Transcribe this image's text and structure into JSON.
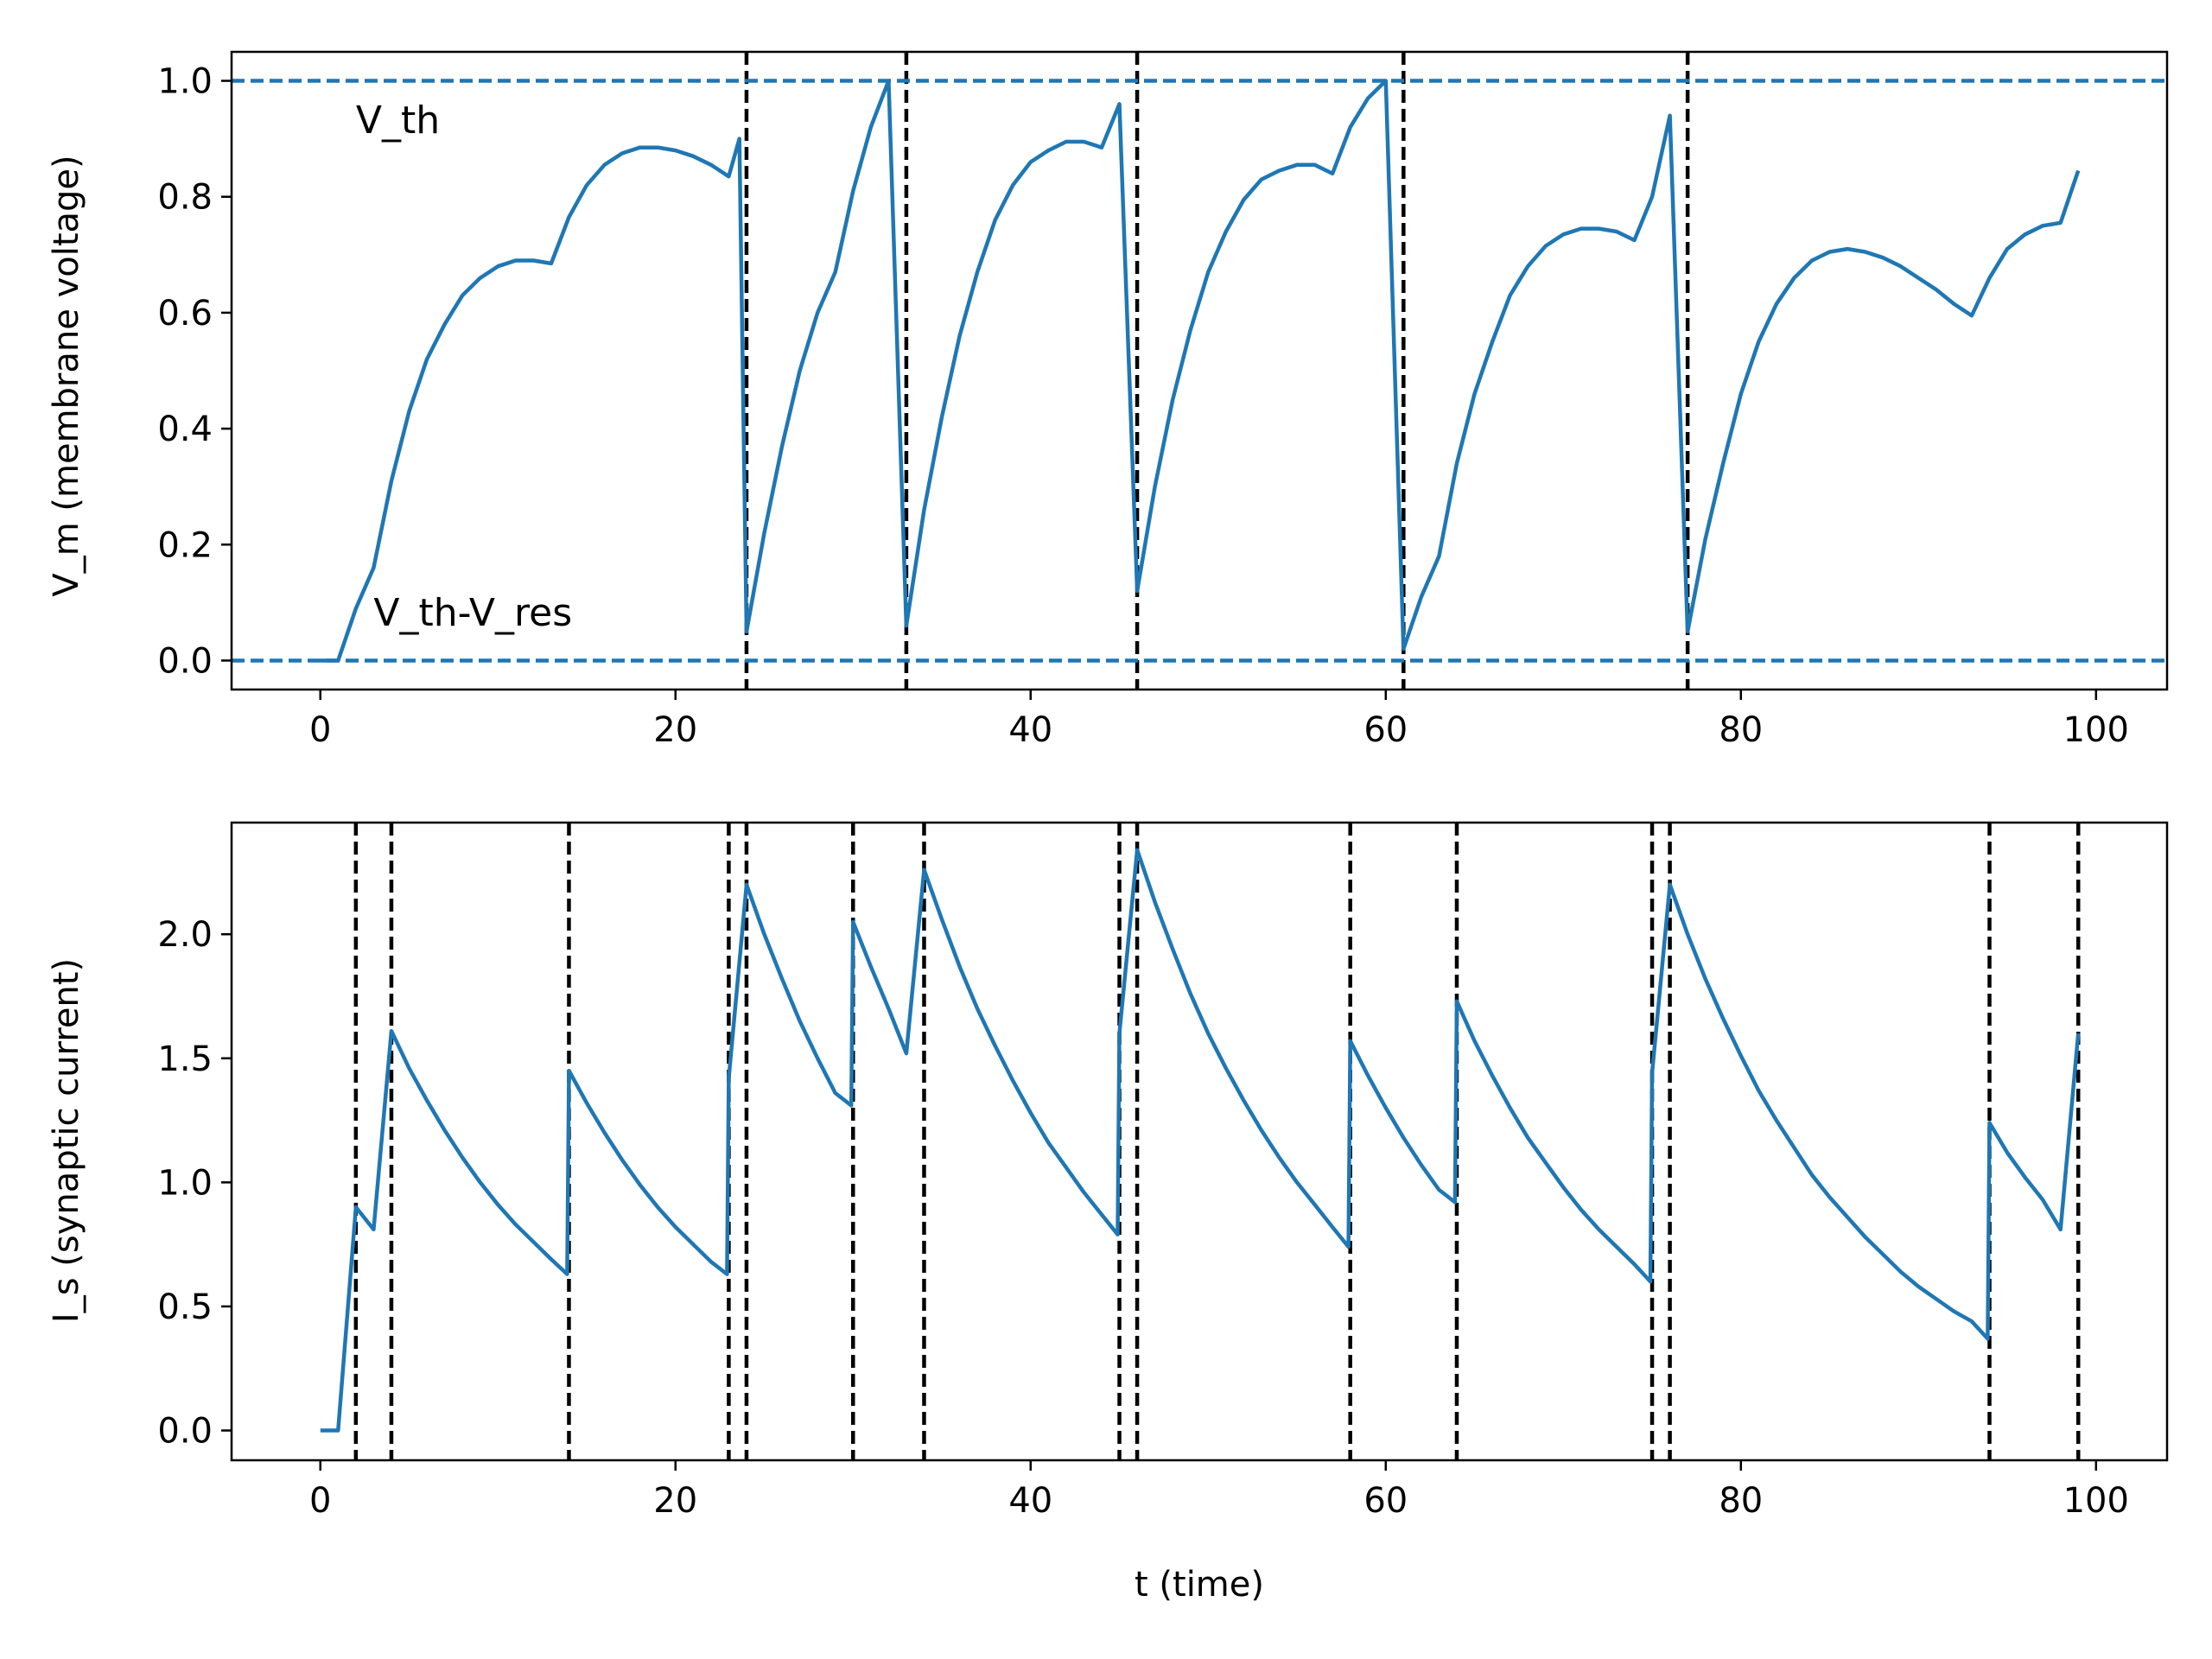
{
  "chart_data": [
    {
      "type": "line",
      "xlabel": "",
      "ylabel": "V_m (membrane voltage)",
      "xlim": [
        -5,
        104
      ],
      "ylim": [
        -0.05,
        1.05
      ],
      "xticks": [
        0,
        20,
        40,
        60,
        80,
        100
      ],
      "xtick_labels": [
        "0",
        "20",
        "40",
        "60",
        "80",
        "100"
      ],
      "yticks": [
        0.0,
        0.2,
        0.4,
        0.6,
        0.8,
        1.0
      ],
      "ytick_labels": [
        "0.0",
        "0.2",
        "0.4",
        "0.6",
        "0.8",
        "1.0"
      ],
      "grid": false,
      "series": [
        {
          "color": "#1f77b4",
          "points": [
            [
              0,
              0
            ],
            [
              1,
              0
            ],
            [
              2,
              0.09
            ],
            [
              3,
              0.16
            ],
            [
              4,
              0.31
            ],
            [
              5,
              0.43
            ],
            [
              6,
              0.52
            ],
            [
              7,
              0.58
            ],
            [
              8,
              0.63
            ],
            [
              9,
              0.66
            ],
            [
              10,
              0.68
            ],
            [
              11,
              0.69
            ],
            [
              12,
              0.69
            ],
            [
              13,
              0.685
            ],
            [
              14,
              0.765
            ],
            [
              15,
              0.82
            ],
            [
              16,
              0.855
            ],
            [
              17,
              0.875
            ],
            [
              18,
              0.885
            ],
            [
              19,
              0.885
            ],
            [
              20,
              0.88
            ],
            [
              21,
              0.87
            ],
            [
              22,
              0.855
            ],
            [
              23,
              0.835
            ],
            [
              23.6,
              0.9
            ],
            [
              24,
              0.05
            ],
            [
              25,
              0.22
            ],
            [
              26,
              0.37
            ],
            [
              27,
              0.5
            ],
            [
              28,
              0.6
            ],
            [
              29,
              0.67
            ],
            [
              30,
              0.81
            ],
            [
              31,
              0.92
            ],
            [
              32,
              1.0
            ],
            [
              33,
              0.06
            ],
            [
              34,
              0.26
            ],
            [
              35,
              0.42
            ],
            [
              36,
              0.56
            ],
            [
              37,
              0.67
            ],
            [
              38,
              0.76
            ],
            [
              39,
              0.82
            ],
            [
              40,
              0.86
            ],
            [
              41,
              0.88
            ],
            [
              42,
              0.895
            ],
            [
              43,
              0.895
            ],
            [
              44,
              0.885
            ],
            [
              45,
              0.96
            ],
            [
              46,
              0.12
            ],
            [
              47,
              0.3
            ],
            [
              48,
              0.45
            ],
            [
              49,
              0.57
            ],
            [
              50,
              0.67
            ],
            [
              51,
              0.74
            ],
            [
              52,
              0.795
            ],
            [
              53,
              0.83
            ],
            [
              54,
              0.845
            ],
            [
              55,
              0.855
            ],
            [
              56,
              0.855
            ],
            [
              57,
              0.84
            ],
            [
              58,
              0.92
            ],
            [
              59,
              0.97
            ],
            [
              60,
              1.0
            ],
            [
              61,
              0.02
            ],
            [
              62,
              0.11
            ],
            [
              63,
              0.18
            ],
            [
              64,
              0.34
            ],
            [
              65,
              0.46
            ],
            [
              66,
              0.55
            ],
            [
              67,
              0.63
            ],
            [
              68,
              0.68
            ],
            [
              69,
              0.715
            ],
            [
              70,
              0.735
            ],
            [
              71,
              0.745
            ],
            [
              72,
              0.745
            ],
            [
              73,
              0.74
            ],
            [
              74,
              0.725
            ],
            [
              75,
              0.8
            ],
            [
              76,
              0.94
            ],
            [
              77,
              0.05
            ],
            [
              78,
              0.21
            ],
            [
              79,
              0.34
            ],
            [
              80,
              0.46
            ],
            [
              81,
              0.55
            ],
            [
              82,
              0.615
            ],
            [
              83,
              0.66
            ],
            [
              84,
              0.69
            ],
            [
              85,
              0.705
            ],
            [
              86,
              0.71
            ],
            [
              87,
              0.705
            ],
            [
              88,
              0.695
            ],
            [
              89,
              0.68
            ],
            [
              90,
              0.66
            ],
            [
              91,
              0.64
            ],
            [
              92,
              0.615
            ],
            [
              93,
              0.595
            ],
            [
              94,
              0.66
            ],
            [
              95,
              0.71
            ],
            [
              96,
              0.735
            ],
            [
              97,
              0.75
            ],
            [
              98,
              0.755
            ],
            [
              99,
              0.845
            ]
          ]
        }
      ],
      "hlines": [
        {
          "y": 1.0,
          "color": "#1f77b4",
          "style": "dashed"
        },
        {
          "y": 0.0,
          "color": "#1f77b4",
          "style": "dashed"
        }
      ],
      "vlines": {
        "x": [
          24,
          33,
          46,
          61,
          77
        ],
        "color": "#000000",
        "style": "dashed"
      },
      "annotations": [
        {
          "text": "V_th",
          "x": 2,
          "y": 0.91
        },
        {
          "text": "V_th-V_res",
          "x": 3,
          "y": 0.06
        }
      ]
    },
    {
      "type": "line",
      "xlabel": "t (time)",
      "ylabel": "I_s (synaptic current)",
      "xlim": [
        -5,
        104
      ],
      "ylim": [
        -0.12,
        2.45
      ],
      "xticks": [
        0,
        20,
        40,
        60,
        80,
        100
      ],
      "xtick_labels": [
        "0",
        "20",
        "40",
        "60",
        "80",
        "100"
      ],
      "yticks": [
        0.0,
        0.5,
        1.0,
        1.5,
        2.0
      ],
      "ytick_labels": [
        "0.0",
        "0.5",
        "1.0",
        "1.5",
        "2.0"
      ],
      "grid": false,
      "series": [
        {
          "color": "#1f77b4",
          "points": [
            [
              0,
              0
            ],
            [
              1,
              0
            ],
            [
              2,
              0.9
            ],
            [
              3,
              0.81
            ],
            [
              4,
              1.61
            ],
            [
              5,
              1.46
            ],
            [
              6,
              1.33
            ],
            [
              7,
              1.21
            ],
            [
              8,
              1.1
            ],
            [
              9,
              1.0
            ],
            [
              10,
              0.91
            ],
            [
              11,
              0.83
            ],
            [
              12,
              0.76
            ],
            [
              13,
              0.69
            ],
            [
              13.9,
              0.63
            ],
            [
              14,
              1.45
            ],
            [
              15,
              1.32
            ],
            [
              16,
              1.2
            ],
            [
              17,
              1.09
            ],
            [
              18,
              0.99
            ],
            [
              19,
              0.9
            ],
            [
              20,
              0.82
            ],
            [
              21,
              0.75
            ],
            [
              22,
              0.68
            ],
            [
              22.9,
              0.63
            ],
            [
              23,
              1.42
            ],
            [
              24,
              2.2
            ],
            [
              25,
              2.0
            ],
            [
              26,
              1.82
            ],
            [
              27,
              1.65
            ],
            [
              28,
              1.5
            ],
            [
              29,
              1.36
            ],
            [
              29.9,
              1.31
            ],
            [
              30,
              2.05
            ],
            [
              31,
              1.87
            ],
            [
              32,
              1.7
            ],
            [
              33,
              1.52
            ],
            [
              34,
              2.26
            ],
            [
              35,
              2.06
            ],
            [
              36,
              1.87
            ],
            [
              37,
              1.7
            ],
            [
              38,
              1.55
            ],
            [
              39,
              1.41
            ],
            [
              40,
              1.28
            ],
            [
              41,
              1.16
            ],
            [
              42,
              1.06
            ],
            [
              43,
              0.96
            ],
            [
              44,
              0.87
            ],
            [
              44.9,
              0.79
            ],
            [
              45,
              1.6
            ],
            [
              46,
              2.34
            ],
            [
              47,
              2.13
            ],
            [
              48,
              1.94
            ],
            [
              49,
              1.76
            ],
            [
              50,
              1.6
            ],
            [
              51,
              1.46
            ],
            [
              52,
              1.33
            ],
            [
              53,
              1.21
            ],
            [
              54,
              1.1
            ],
            [
              55,
              1.0
            ],
            [
              56,
              0.91
            ],
            [
              57,
              0.82
            ],
            [
              57.9,
              0.74
            ],
            [
              58,
              1.57
            ],
            [
              59,
              1.43
            ],
            [
              60,
              1.3
            ],
            [
              61,
              1.18
            ],
            [
              62,
              1.07
            ],
            [
              63,
              0.97
            ],
            [
              63.9,
              0.92
            ],
            [
              64,
              1.73
            ],
            [
              65,
              1.57
            ],
            [
              66,
              1.43
            ],
            [
              67,
              1.3
            ],
            [
              68,
              1.18
            ],
            [
              69,
              1.08
            ],
            [
              70,
              0.98
            ],
            [
              71,
              0.89
            ],
            [
              72,
              0.81
            ],
            [
              73,
              0.74
            ],
            [
              74,
              0.67
            ],
            [
              74.9,
              0.6
            ],
            [
              75,
              1.44
            ],
            [
              76,
              2.2
            ],
            [
              77,
              2.0
            ],
            [
              78,
              1.82
            ],
            [
              79,
              1.66
            ],
            [
              80,
              1.51
            ],
            [
              81,
              1.37
            ],
            [
              82,
              1.25
            ],
            [
              83,
              1.14
            ],
            [
              84,
              1.03
            ],
            [
              85,
              0.94
            ],
            [
              86,
              0.86
            ],
            [
              87,
              0.78
            ],
            [
              88,
              0.71
            ],
            [
              89,
              0.64
            ],
            [
              90,
              0.58
            ],
            [
              91,
              0.53
            ],
            [
              92,
              0.48
            ],
            [
              93,
              0.44
            ],
            [
              93.9,
              0.37
            ],
            [
              94,
              1.24
            ],
            [
              95,
              1.12
            ],
            [
              96,
              1.02
            ],
            [
              97,
              0.93
            ],
            [
              98,
              0.81
            ],
            [
              99,
              1.6
            ]
          ]
        }
      ],
      "vlines": {
        "x": [
          2,
          4,
          14,
          23,
          24,
          30,
          34,
          45,
          46,
          58,
          64,
          75,
          76,
          94,
          99
        ],
        "color": "#000000",
        "style": "dashed"
      }
    }
  ]
}
